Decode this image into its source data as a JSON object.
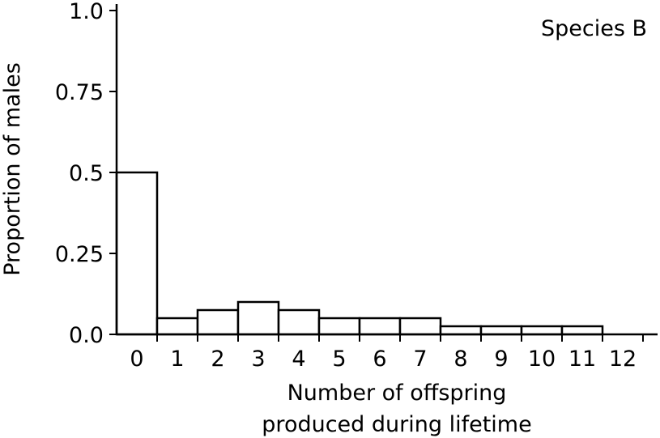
{
  "chart_data": {
    "type": "bar",
    "annotation": "Species B",
    "categories": [
      "0",
      "1",
      "2",
      "3",
      "4",
      "5",
      "6",
      "7",
      "8",
      "9",
      "10",
      "11",
      "12"
    ],
    "values": [
      0.5,
      0.05,
      0.075,
      0.1,
      0.075,
      0.05,
      0.05,
      0.05,
      0.025,
      0.025,
      0.025,
      0.025,
      0
    ],
    "ylabel": "Proportion of males",
    "xlabel_lines": [
      "Number of offspring",
      "produced during lifetime"
    ],
    "ylim": [
      0,
      1.0
    ],
    "yticks": [
      {
        "value": 0,
        "label": "0.0"
      },
      {
        "value": 0.25,
        "label": "0.25"
      },
      {
        "value": 0.5,
        "label": "0.5"
      },
      {
        "value": 0.75,
        "label": "0.75"
      },
      {
        "value": 1.0,
        "label": "1.0"
      }
    ],
    "grid": false,
    "bar_fill": "#ffffff",
    "bar_stroke": "#000000"
  }
}
